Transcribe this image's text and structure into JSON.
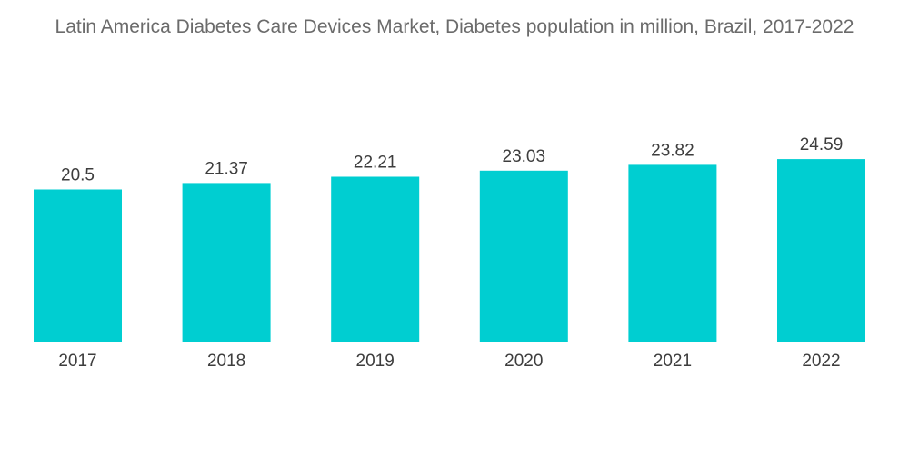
{
  "chart_data": {
    "type": "bar",
    "title": "Latin America Diabetes Care Devices Market, Diabetes population in million, Brazil, 2017-2022",
    "categories": [
      "2017",
      "2018",
      "2019",
      "2020",
      "2021",
      "2022"
    ],
    "values": [
      20.5,
      21.37,
      22.21,
      23.03,
      23.82,
      24.59
    ],
    "value_labels": [
      "20.5",
      "21.37",
      "22.21",
      "23.03",
      "23.82",
      "24.59"
    ],
    "xlabel": "",
    "ylabel": "",
    "grid": false,
    "legend": "none",
    "bar_color": "#00ced1"
  }
}
